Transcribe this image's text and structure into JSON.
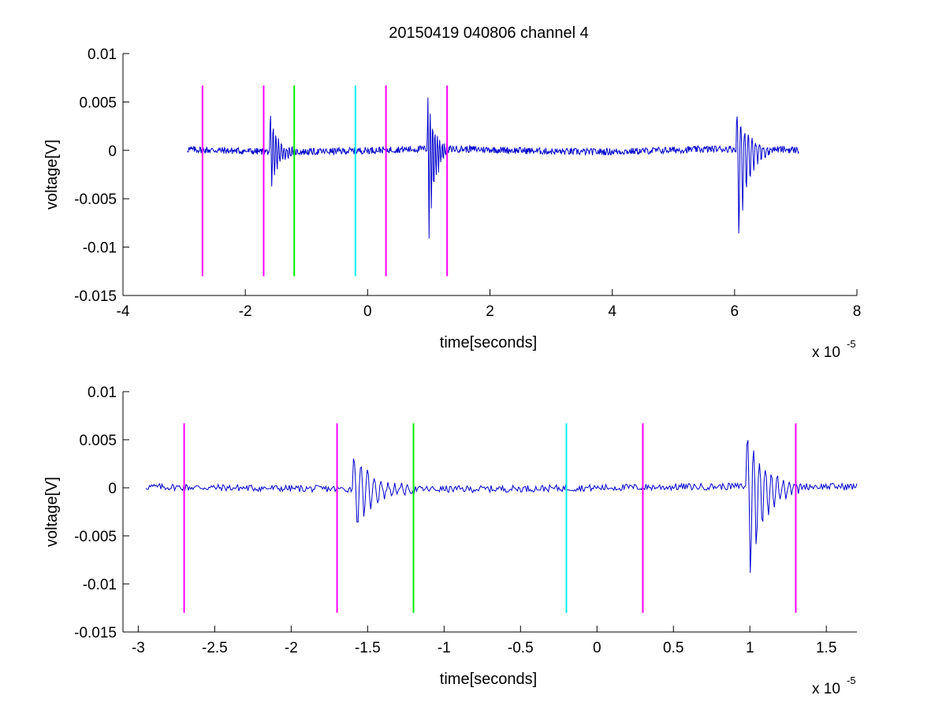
{
  "figure": {
    "title": "20150419 040806 channel 4"
  },
  "chart_data": [
    {
      "type": "line",
      "title": "20150419 040806 channel 4",
      "xlabel": "time[seconds]",
      "ylabel": "voltage[V]",
      "x_exponent_label": "x 10",
      "x_exponent": "-5",
      "xlim": [
        -4,
        8
      ],
      "ylim": [
        -0.015,
        0.01
      ],
      "x_ticks": [
        -4,
        -2,
        0,
        2,
        4,
        6,
        8
      ],
      "x_tick_labels": [
        "-4",
        "-2",
        "0",
        "2",
        "4",
        "6",
        "8"
      ],
      "y_ticks": [
        -0.015,
        -0.01,
        -0.005,
        0,
        0.005,
        0.01
      ],
      "y_tick_labels": [
        "-0.015",
        "-0.01",
        "-0.005",
        "0",
        "0.005",
        "0.01"
      ],
      "grid": false,
      "series_color": "#0000cc",
      "signal": {
        "x_range": [
          -2.95,
          7.05
        ],
        "noise_amplitude": 0.0004,
        "bursts": [
          {
            "center": -1.4,
            "duration": 0.4,
            "peak_pos": 0.004,
            "peak_neg": -0.005
          },
          {
            "center": 1.15,
            "duration": 0.35,
            "peak_pos": 0.006,
            "peak_neg": -0.0118
          },
          {
            "center": 6.3,
            "duration": 0.55,
            "peak_pos": 0.0039,
            "peak_neg": -0.0112
          }
        ]
      },
      "markers": [
        {
          "x": -2.7,
          "color": "#ff00ff",
          "y_range": [
            -0.013,
            0.0067
          ]
        },
        {
          "x": -1.7,
          "color": "#ff00ff",
          "y_range": [
            -0.013,
            0.0067
          ]
        },
        {
          "x": -1.2,
          "color": "#00ee00",
          "y_range": [
            -0.013,
            0.0067
          ]
        },
        {
          "x": -0.2,
          "color": "#00eeee",
          "y_range": [
            -0.013,
            0.0067
          ]
        },
        {
          "x": 0.3,
          "color": "#ff00ff",
          "y_range": [
            -0.013,
            0.0067
          ]
        },
        {
          "x": 1.3,
          "color": "#ff00ff",
          "y_range": [
            -0.013,
            0.0067
          ]
        }
      ]
    },
    {
      "type": "line",
      "title": "",
      "xlabel": "time[seconds]",
      "ylabel": "voltage[V]",
      "x_exponent_label": "x 10",
      "x_exponent": "-5",
      "xlim": [
        -3.1,
        1.7
      ],
      "ylim": [
        -0.015,
        0.01
      ],
      "x_ticks": [
        -3,
        -2.5,
        -2,
        -1.5,
        -1,
        -0.5,
        0,
        0.5,
        1,
        1.5
      ],
      "x_tick_labels": [
        "-3",
        "-2.5",
        "-2",
        "-1.5",
        "-1",
        "-0.5",
        "0",
        "0.5",
        "1",
        "1.5"
      ],
      "y_ticks": [
        -0.015,
        -0.01,
        -0.005,
        0,
        0.005,
        0.01
      ],
      "y_tick_labels": [
        "-0.015",
        "-0.01",
        "-0.005",
        "0",
        "0.005",
        "0.01"
      ],
      "grid": false,
      "series_color": "#0000cc",
      "signal": {
        "x_range": [
          -2.95,
          1.7
        ],
        "noise_amplitude": 0.0004,
        "bursts": [
          {
            "center": -1.4,
            "duration": 0.4,
            "peak_pos": 0.004,
            "peak_neg": -0.005
          },
          {
            "center": 1.15,
            "duration": 0.35,
            "peak_pos": 0.006,
            "peak_neg": -0.0118
          }
        ]
      },
      "markers": [
        {
          "x": -2.7,
          "color": "#ff00ff",
          "y_range": [
            -0.013,
            0.0067
          ]
        },
        {
          "x": -1.7,
          "color": "#ff00ff",
          "y_range": [
            -0.013,
            0.0067
          ]
        },
        {
          "x": -1.2,
          "color": "#00ee00",
          "y_range": [
            -0.013,
            0.0067
          ]
        },
        {
          "x": -0.2,
          "color": "#00eeee",
          "y_range": [
            -0.013,
            0.0067
          ]
        },
        {
          "x": 0.3,
          "color": "#ff00ff",
          "y_range": [
            -0.013,
            0.0067
          ]
        },
        {
          "x": 1.3,
          "color": "#ff00ff",
          "y_range": [
            -0.013,
            0.0067
          ]
        }
      ]
    }
  ]
}
